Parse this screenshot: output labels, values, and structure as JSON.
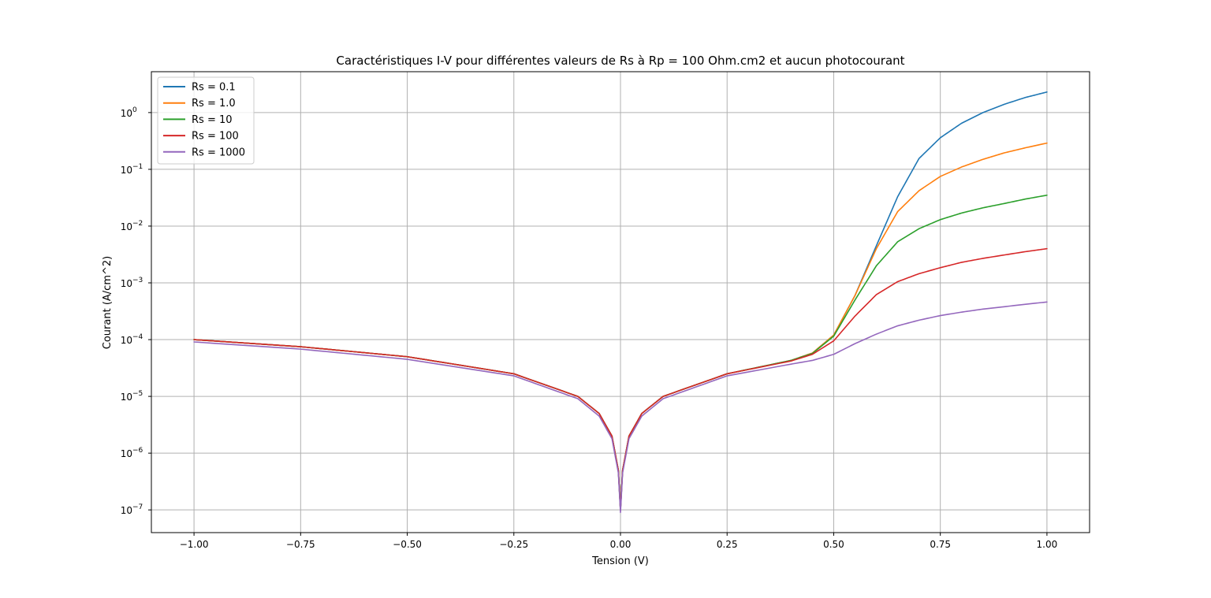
{
  "chart_data": {
    "type": "line",
    "title": "Caractéristiques I-V pour différentes valeurs de Rs à Rp = 100 Ohm.cm2 et aucun photocourant",
    "xlabel": "Tension (V)",
    "ylabel": "Courant (A/cm^2)",
    "xlim": [
      -1.1,
      1.1
    ],
    "ylim_log10": [
      -7.4,
      0.72
    ],
    "yscale": "log",
    "grid": true,
    "legend_position": "upper-left",
    "x_ticks": [
      {
        "value": -1.0,
        "label": "−1.00"
      },
      {
        "value": -0.75,
        "label": "−0.75"
      },
      {
        "value": -0.5,
        "label": "−0.50"
      },
      {
        "value": -0.25,
        "label": "−0.25"
      },
      {
        "value": 0.0,
        "label": "0.00"
      },
      {
        "value": 0.25,
        "label": "0.25"
      },
      {
        "value": 0.5,
        "label": "0.50"
      },
      {
        "value": 0.75,
        "label": "0.75"
      },
      {
        "value": 1.0,
        "label": "1.00"
      }
    ],
    "y_ticks": [
      {
        "exp": 0,
        "label": "0"
      },
      {
        "exp": -1,
        "label": "−1"
      },
      {
        "exp": -2,
        "label": "−2"
      },
      {
        "exp": -3,
        "label": "−3"
      },
      {
        "exp": -4,
        "label": "−4"
      },
      {
        "exp": -5,
        "label": "−5"
      },
      {
        "exp": -6,
        "label": "−6"
      },
      {
        "exp": -7,
        "label": "−7"
      }
    ],
    "y_tick_base": "10",
    "series": [
      {
        "name": "Rs = 0.1",
        "color": "#1f77b4",
        "x": [
          -1.0,
          -0.75,
          -0.5,
          -0.25,
          -0.1,
          -0.05,
          -0.02,
          -0.005,
          0.0,
          0.005,
          0.02,
          0.05,
          0.1,
          0.25,
          0.4,
          0.45,
          0.5,
          0.55,
          0.6,
          0.65,
          0.7,
          0.75,
          0.8,
          0.85,
          0.9,
          0.95,
          1.0
        ],
        "y": [
          0.0001,
          7.5e-05,
          5e-05,
          2.5e-05,
          1e-05,
          5e-06,
          2e-06,
          5e-07,
          1e-07,
          5e-07,
          2e-06,
          5e-06,
          1e-05,
          2.5e-05,
          4.3e-05,
          5.8e-05,
          0.00012,
          0.0006,
          0.0045,
          0.033,
          0.155,
          0.36,
          0.65,
          1.0,
          1.4,
          1.85,
          2.3
        ]
      },
      {
        "name": "Rs = 1.0",
        "color": "#ff7f0e",
        "x": [
          -1.0,
          -0.75,
          -0.5,
          -0.25,
          -0.1,
          -0.05,
          -0.02,
          -0.005,
          0.0,
          0.005,
          0.02,
          0.05,
          0.1,
          0.25,
          0.4,
          0.45,
          0.5,
          0.55,
          0.6,
          0.65,
          0.7,
          0.75,
          0.8,
          0.85,
          0.9,
          0.95,
          1.0
        ],
        "y": [
          0.0001,
          7.5e-05,
          5e-05,
          2.5e-05,
          1e-05,
          5e-06,
          2e-06,
          5e-07,
          1e-07,
          5e-07,
          2e-06,
          5e-06,
          1e-05,
          2.5e-05,
          4.3e-05,
          5.8e-05,
          0.00012,
          0.0006,
          0.004,
          0.018,
          0.042,
          0.075,
          0.11,
          0.15,
          0.195,
          0.24,
          0.29
        ]
      },
      {
        "name": "Rs = 10",
        "color": "#2ca02c",
        "x": [
          -1.0,
          -0.75,
          -0.5,
          -0.25,
          -0.1,
          -0.05,
          -0.02,
          -0.005,
          0.0,
          0.005,
          0.02,
          0.05,
          0.1,
          0.25,
          0.4,
          0.45,
          0.5,
          0.55,
          0.6,
          0.65,
          0.7,
          0.75,
          0.8,
          0.85,
          0.9,
          0.95,
          1.0
        ],
        "y": [
          0.0001,
          7.5e-05,
          5e-05,
          2.5e-05,
          1e-05,
          5e-06,
          2e-06,
          5e-07,
          1e-07,
          5e-07,
          2e-06,
          5e-06,
          1e-05,
          2.5e-05,
          4.3e-05,
          5.7e-05,
          0.000115,
          0.0005,
          0.002,
          0.0053,
          0.009,
          0.013,
          0.017,
          0.021,
          0.025,
          0.03,
          0.035
        ]
      },
      {
        "name": "Rs = 100",
        "color": "#d62728",
        "x": [
          -1.0,
          -0.75,
          -0.5,
          -0.25,
          -0.1,
          -0.05,
          -0.02,
          -0.005,
          0.0,
          0.005,
          0.02,
          0.05,
          0.1,
          0.25,
          0.4,
          0.45,
          0.5,
          0.55,
          0.6,
          0.65,
          0.7,
          0.75,
          0.8,
          0.85,
          0.9,
          0.95,
          1.0
        ],
        "y": [
          0.0001,
          7.5e-05,
          5e-05,
          2.5e-05,
          1e-05,
          5e-06,
          2e-06,
          5e-07,
          1e-07,
          5e-07,
          2e-06,
          5e-06,
          1e-05,
          2.5e-05,
          4.2e-05,
          5.5e-05,
          9.5e-05,
          0.00026,
          0.00062,
          0.00105,
          0.00145,
          0.00185,
          0.0023,
          0.0027,
          0.0031,
          0.00355,
          0.004
        ]
      },
      {
        "name": "Rs = 1000",
        "color": "#9467bd",
        "x": [
          -1.0,
          -0.75,
          -0.5,
          -0.25,
          -0.1,
          -0.05,
          -0.02,
          -0.005,
          0.0,
          0.005,
          0.02,
          0.05,
          0.1,
          0.25,
          0.4,
          0.45,
          0.5,
          0.55,
          0.6,
          0.65,
          0.7,
          0.75,
          0.8,
          0.85,
          0.9,
          0.95,
          1.0
        ],
        "y": [
          9.1e-05,
          6.8e-05,
          4.5e-05,
          2.3e-05,
          9.1e-06,
          4.5e-06,
          1.8e-06,
          4.5e-07,
          9e-08,
          4.5e-07,
          1.8e-06,
          4.5e-06,
          9.1e-06,
          2.3e-05,
          3.7e-05,
          4.3e-05,
          5.5e-05,
          8.5e-05,
          0.000125,
          0.000175,
          0.00022,
          0.000265,
          0.000305,
          0.000345,
          0.00038,
          0.00042,
          0.00046
        ]
      }
    ]
  }
}
